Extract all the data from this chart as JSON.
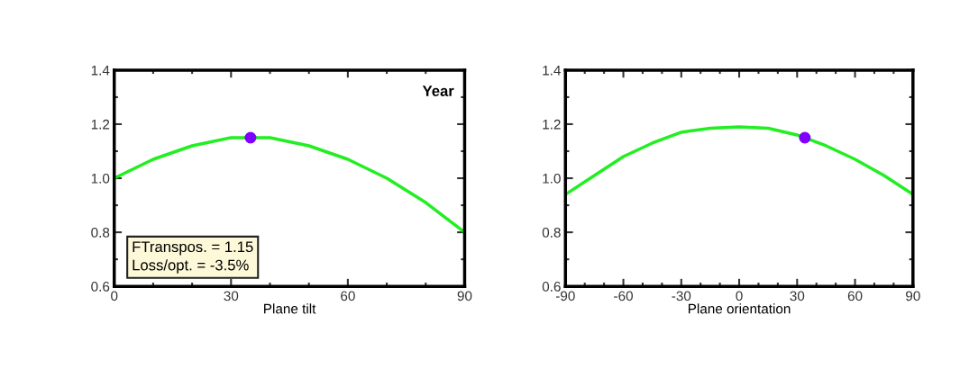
{
  "chart_data": [
    {
      "type": "line",
      "xlabel": "Plane tilt",
      "annotations": [
        "Year",
        "FTranspos. = 1.15\nLoss/opt. = -3.5%"
      ],
      "series": [
        {
          "color": "#22ee22",
          "x": [
            0,
            10,
            20,
            30,
            40,
            50,
            60,
            70,
            80,
            90
          ],
          "values": [
            1.0,
            1.07,
            1.12,
            1.15,
            1.15,
            1.12,
            1.07,
            1.0,
            0.91,
            0.8
          ]
        },
        {
          "type": "scatter",
          "color": "#8000ff",
          "x": [
            35
          ],
          "values": [
            1.15
          ]
        }
      ],
      "xlim": [
        0,
        90
      ],
      "ylim": [
        0.6,
        1.4
      ],
      "xticks": [
        0,
        {
          "value": 10,
          "label": null
        },
        {
          "value": 20,
          "label": null
        },
        30,
        {
          "value": 40,
          "label": null
        },
        {
          "value": 50,
          "label": null
        },
        60,
        {
          "value": 70,
          "label": null
        },
        {
          "value": 80,
          "label": null
        },
        90
      ],
      "yticks": [
        0.6,
        {
          "value": 0.7,
          "label": null
        },
        0.8,
        {
          "value": 0.9,
          "label": null
        },
        {
          "value": 1.0,
          "label": "1.0"
        },
        {
          "value": 1.1,
          "label": null
        },
        1.2,
        {
          "value": 1.3,
          "label": null
        },
        1.4
      ],
      "grid": false,
      "legend": false
    },
    {
      "type": "line",
      "xlabel": "Plane orientation",
      "series": [
        {
          "color": "#22ee22",
          "x": [
            -90,
            -75,
            -60,
            -45,
            -30,
            -15,
            0,
            15,
            30,
            45,
            60,
            75,
            90
          ],
          "values": [
            0.94,
            1.01,
            1.08,
            1.13,
            1.17,
            1.185,
            1.19,
            1.185,
            1.16,
            1.12,
            1.07,
            1.01,
            0.94
          ]
        },
        {
          "type": "scatter",
          "color": "#8000ff",
          "x": [
            34
          ],
          "values": [
            1.15
          ]
        }
      ],
      "xlim": [
        -90,
        90
      ],
      "ylim": [
        0.6,
        1.4
      ],
      "xticks": [
        -90,
        {
          "value": -80,
          "label": null
        },
        {
          "value": -70,
          "label": null
        },
        -60,
        {
          "value": -50,
          "label": null
        },
        {
          "value": -40,
          "label": null
        },
        -30,
        {
          "value": -20,
          "label": null
        },
        {
          "value": -10,
          "label": null
        },
        0,
        {
          "value": 10,
          "label": null
        },
        {
          "value": 20,
          "label": null
        },
        30,
        {
          "value": 40,
          "label": null
        },
        {
          "value": 50,
          "label": null
        },
        60,
        {
          "value": 70,
          "label": null
        },
        {
          "value": 80,
          "label": null
        },
        90
      ],
      "yticks": [
        0.6,
        {
          "value": 0.7,
          "label": null
        },
        0.8,
        {
          "value": 0.9,
          "label": null
        },
        {
          "value": 1.0,
          "label": "1.0"
        },
        {
          "value": 1.1,
          "label": null
        },
        1.2,
        {
          "value": 1.3,
          "label": null
        },
        1.4
      ],
      "grid": false,
      "legend": false
    }
  ]
}
